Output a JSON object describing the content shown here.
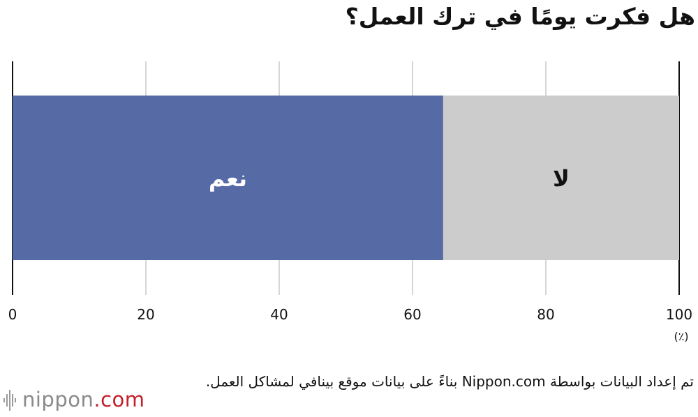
{
  "title": "هل فكرت يومًا في ترك العمل؟",
  "source_note": "تم إعداد البيانات بواسطة Nippon.com بناءً على بيانات موقع بينافي لمشاكل العمل.",
  "logo": {
    "name": "nippon",
    "suffix": ".com"
  },
  "colors": {
    "yes": "#566aa6",
    "no": "#cccccc",
    "grid": "#c8c8c8",
    "axis": "#111111"
  },
  "chart_data": {
    "type": "bar",
    "orientation": "horizontal",
    "stacked": true,
    "categories": [
      ""
    ],
    "series": [
      {
        "name": "نعم",
        "values": [
          64.6
        ]
      },
      {
        "name": "لا",
        "values": [
          35.4
        ]
      }
    ],
    "xlim": [
      0,
      100
    ],
    "xticks": [
      "0",
      "20",
      "40",
      "60",
      "80",
      "100"
    ],
    "xunit": "(٪)",
    "grid": true,
    "legend": "none"
  }
}
